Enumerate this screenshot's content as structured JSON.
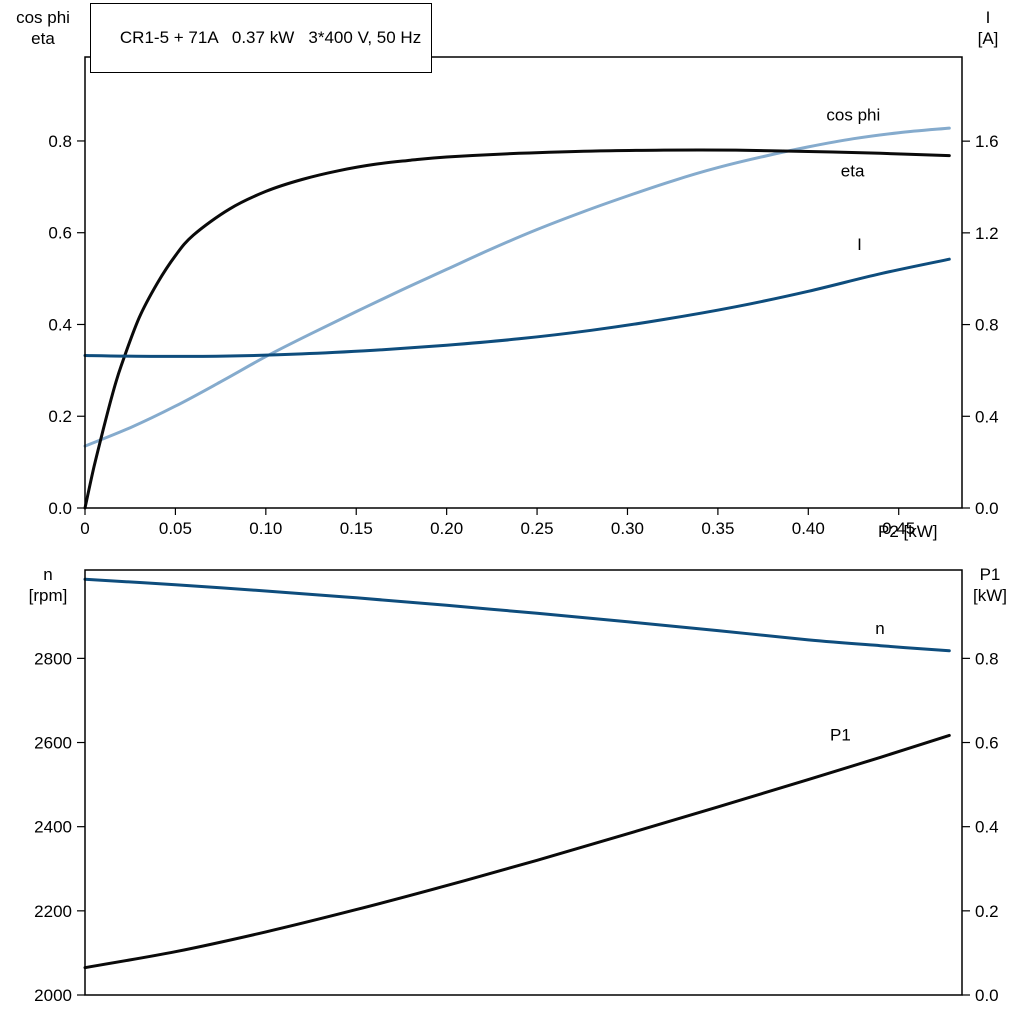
{
  "title_box": {
    "text": "CR1-5 + 71A   0.37 kW   3*400 V, 50 Hz"
  },
  "colors": {
    "frame": "#000000",
    "dark_blue": "#0e4d7d",
    "light_blue": "#85abcd",
    "black": "#0a0a0a"
  },
  "chart_data": [
    {
      "type": "line",
      "id": "motor-performance-top",
      "x_axis": {
        "label": "P2 [kW]",
        "range": [
          0,
          0.485
        ],
        "ticks": [
          {
            "v": 0,
            "t": "0"
          },
          {
            "v": 0.05,
            "t": "0.05"
          },
          {
            "v": 0.1,
            "t": "0.10"
          },
          {
            "v": 0.15,
            "t": "0.15"
          },
          {
            "v": 0.2,
            "t": "0.20"
          },
          {
            "v": 0.25,
            "t": "0.25"
          },
          {
            "v": 0.3,
            "t": "0.30"
          },
          {
            "v": 0.35,
            "t": "0.35"
          },
          {
            "v": 0.4,
            "t": "0.40"
          },
          {
            "v": 0.45,
            "t": "0.45"
          }
        ]
      },
      "left_axis": {
        "title_lines": [
          "cos phi",
          "eta"
        ],
        "range": [
          0,
          0.983
        ],
        "ticks": [
          {
            "v": 0.0,
            "t": "0.0"
          },
          {
            "v": 0.2,
            "t": "0.2"
          },
          {
            "v": 0.4,
            "t": "0.4"
          },
          {
            "v": 0.6,
            "t": "0.6"
          },
          {
            "v": 0.8,
            "t": "0.8"
          }
        ]
      },
      "right_axis": {
        "title_lines": [
          "I",
          "[A]"
        ],
        "range": [
          0,
          1.967
        ],
        "ticks": [
          {
            "v": 0.0,
            "t": "0.0"
          },
          {
            "v": 0.4,
            "t": "0.4"
          },
          {
            "v": 0.8,
            "t": "0.8"
          },
          {
            "v": 1.2,
            "t": "1.2"
          },
          {
            "v": 1.6,
            "t": "1.6"
          }
        ]
      },
      "series": [
        {
          "name": "cos phi",
          "axis": "left",
          "color": "#85abcd",
          "label_at": [
            0.41,
            0.845
          ],
          "points": [
            [
              0,
              0.135
            ],
            [
              0.025,
              0.175
            ],
            [
              0.05,
              0.222
            ],
            [
              0.075,
              0.275
            ],
            [
              0.1,
              0.33
            ],
            [
              0.125,
              0.38
            ],
            [
              0.15,
              0.428
            ],
            [
              0.175,
              0.475
            ],
            [
              0.2,
              0.52
            ],
            [
              0.225,
              0.565
            ],
            [
              0.25,
              0.607
            ],
            [
              0.275,
              0.645
            ],
            [
              0.3,
              0.68
            ],
            [
              0.325,
              0.713
            ],
            [
              0.35,
              0.742
            ],
            [
              0.375,
              0.766
            ],
            [
              0.4,
              0.787
            ],
            [
              0.425,
              0.805
            ],
            [
              0.45,
              0.818
            ],
            [
              0.478,
              0.828
            ]
          ]
        },
        {
          "name": "eta",
          "axis": "left",
          "color": "#0a0a0a",
          "label_at": [
            0.418,
            0.722
          ],
          "points": [
            [
              0,
              0.0
            ],
            [
              0.005,
              0.09
            ],
            [
              0.01,
              0.17
            ],
            [
              0.015,
              0.245
            ],
            [
              0.02,
              0.31
            ],
            [
              0.03,
              0.415
            ],
            [
              0.04,
              0.49
            ],
            [
              0.05,
              0.55
            ],
            [
              0.06,
              0.595
            ],
            [
              0.08,
              0.652
            ],
            [
              0.1,
              0.69
            ],
            [
              0.12,
              0.716
            ],
            [
              0.14,
              0.735
            ],
            [
              0.16,
              0.749
            ],
            [
              0.18,
              0.758
            ],
            [
              0.2,
              0.765
            ],
            [
              0.24,
              0.773
            ],
            [
              0.28,
              0.778
            ],
            [
              0.32,
              0.78
            ],
            [
              0.36,
              0.78
            ],
            [
              0.4,
              0.777
            ],
            [
              0.44,
              0.773
            ],
            [
              0.478,
              0.768
            ]
          ]
        },
        {
          "name": "I",
          "axis": "right",
          "color": "#0e4d7d",
          "label_at": [
            0.427,
            1.125
          ],
          "points": [
            [
              0,
              0.665
            ],
            [
              0.04,
              0.661
            ],
            [
              0.08,
              0.663
            ],
            [
              0.12,
              0.672
            ],
            [
              0.16,
              0.688
            ],
            [
              0.2,
              0.71
            ],
            [
              0.24,
              0.738
            ],
            [
              0.28,
              0.775
            ],
            [
              0.32,
              0.822
            ],
            [
              0.36,
              0.878
            ],
            [
              0.4,
              0.945
            ],
            [
              0.44,
              1.022
            ],
            [
              0.478,
              1.085
            ]
          ]
        }
      ]
    },
    {
      "type": "line",
      "id": "motor-performance-bottom",
      "x_axis": {
        "label": "",
        "range": [
          0,
          0.485
        ],
        "ticks": []
      },
      "left_axis": {
        "title_lines": [
          "n",
          "[rpm]"
        ],
        "range": [
          2000,
          3010
        ],
        "ticks": [
          {
            "v": 2000,
            "t": "2000"
          },
          {
            "v": 2200,
            "t": "2200"
          },
          {
            "v": 2400,
            "t": "2400"
          },
          {
            "v": 2600,
            "t": "2600"
          },
          {
            "v": 2800,
            "t": "2800"
          }
        ]
      },
      "right_axis": {
        "title_lines": [
          "P1",
          "[kW]"
        ],
        "range": [
          0,
          1.01
        ],
        "ticks": [
          {
            "v": 0.0,
            "t": "0.0"
          },
          {
            "v": 0.2,
            "t": "0.2"
          },
          {
            "v": 0.4,
            "t": "0.4"
          },
          {
            "v": 0.6,
            "t": "0.6"
          },
          {
            "v": 0.8,
            "t": "0.8"
          }
        ]
      },
      "series": [
        {
          "name": "n",
          "axis": "left",
          "color": "#0e4d7d",
          "label_at": [
            0.437,
            2858
          ],
          "points": [
            [
              0,
              2988
            ],
            [
              0.05,
              2975
            ],
            [
              0.1,
              2960
            ],
            [
              0.15,
              2944
            ],
            [
              0.2,
              2926
            ],
            [
              0.25,
              2907
            ],
            [
              0.3,
              2887
            ],
            [
              0.35,
              2866
            ],
            [
              0.4,
              2844
            ],
            [
              0.44,
              2830
            ],
            [
              0.478,
              2818
            ]
          ]
        },
        {
          "name": "P1",
          "axis": "right",
          "color": "#0a0a0a",
          "label_at": [
            0.412,
            0.605
          ],
          "points": [
            [
              0,
              0.065
            ],
            [
              0.05,
              0.103
            ],
            [
              0.1,
              0.15
            ],
            [
              0.15,
              0.203
            ],
            [
              0.2,
              0.26
            ],
            [
              0.25,
              0.32
            ],
            [
              0.3,
              0.383
            ],
            [
              0.35,
              0.447
            ],
            [
              0.4,
              0.512
            ],
            [
              0.44,
              0.565
            ],
            [
              0.478,
              0.617
            ]
          ]
        }
      ]
    }
  ]
}
